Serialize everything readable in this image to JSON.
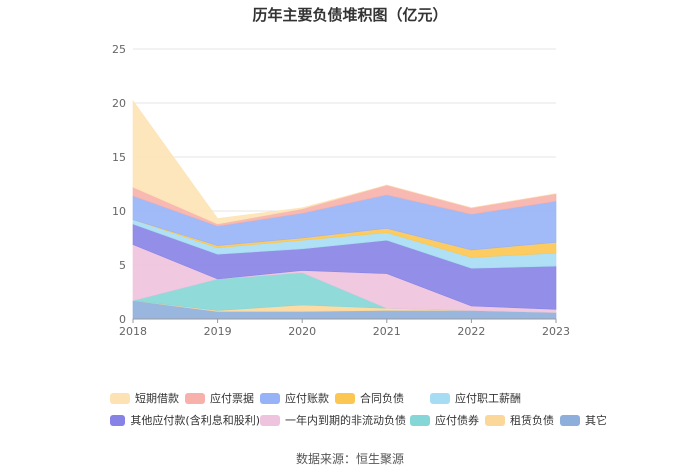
{
  "chart_data": {
    "type": "area",
    "stacked": true,
    "title": "历年主要负债堆积图（亿元）",
    "categories": [
      "2018",
      "2019",
      "2020",
      "2021",
      "2022",
      "2023"
    ],
    "yticks": [
      "0",
      "5",
      "10",
      "15",
      "20",
      "25"
    ],
    "ylim": [
      0,
      25
    ],
    "grid": true,
    "legend_position": "bottom",
    "series": [
      {
        "name": "其它",
        "color": "#8eaedb",
        "values": [
          1.7,
          0.7,
          0.7,
          0.8,
          0.8,
          0.6
        ]
      },
      {
        "name": "租赁负债",
        "color": "#fcd79a",
        "values": [
          0.0,
          0.1,
          0.6,
          0.2,
          0.0,
          0.0
        ]
      },
      {
        "name": "应付债券",
        "color": "#85d6d6",
        "values": [
          0.0,
          2.9,
          3.0,
          0.0,
          0.0,
          0.0
        ]
      },
      {
        "name": "一年内到期的非流动负债",
        "color": "#eec3dd",
        "values": [
          5.2,
          0.0,
          0.2,
          3.2,
          0.4,
          0.3
        ]
      },
      {
        "name": "其他应付款(含利息和股利)",
        "color": "#8783e6",
        "values": [
          1.9,
          2.3,
          2.0,
          3.1,
          3.5,
          4.0
        ]
      },
      {
        "name": "应付职工薪酬",
        "color": "#a6ddf4",
        "values": [
          0.4,
          0.6,
          0.8,
          0.7,
          1.0,
          1.2
        ]
      },
      {
        "name": "合同负债",
        "color": "#fcc652",
        "values": [
          0.0,
          0.2,
          0.2,
          0.4,
          0.7,
          1.0
        ]
      },
      {
        "name": "应付账款",
        "color": "#97b3f7",
        "values": [
          2.2,
          1.8,
          2.3,
          3.1,
          3.3,
          3.8
        ]
      },
      {
        "name": "应付票据",
        "color": "#f7b1aa",
        "values": [
          0.8,
          0.2,
          0.4,
          0.9,
          0.6,
          0.7
        ]
      },
      {
        "name": "短期借款",
        "color": "#fde3b4",
        "values": [
          8.0,
          0.5,
          0.1,
          0.0,
          0.0,
          0.0
        ]
      }
    ],
    "legend_rows": [
      [
        "短期借款",
        "应付票据",
        "应付账款",
        "合同负债",
        "应付职工薪酬"
      ],
      [
        "其他应付款(含利息和股利)",
        "一年内到期的非流动负债",
        "应付债券",
        "租赁负债",
        "其它"
      ]
    ],
    "source": "数据来源：恒生聚源"
  }
}
